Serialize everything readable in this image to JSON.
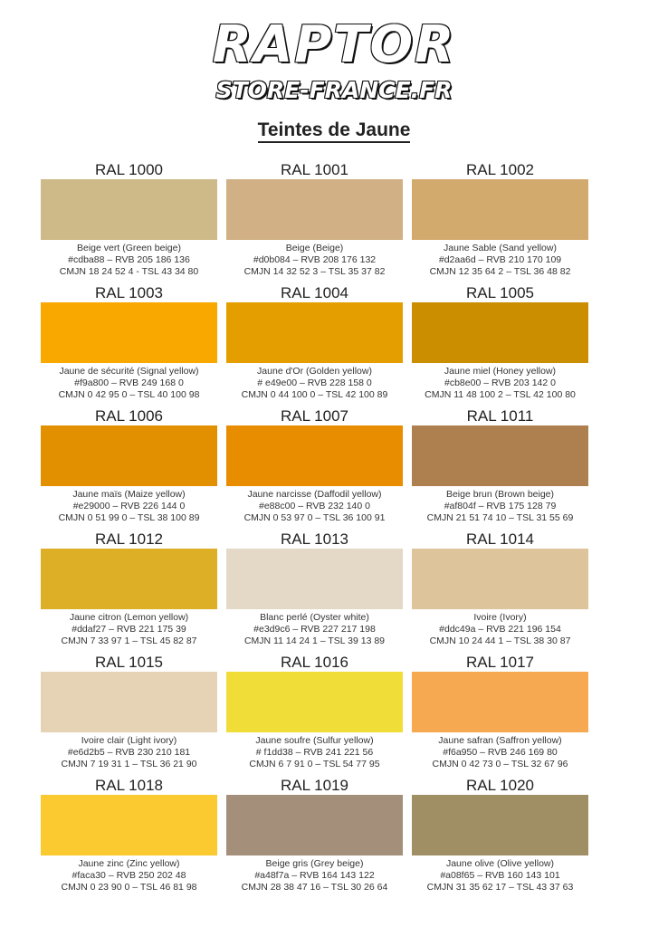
{
  "logo": {
    "main": "RAPTOR",
    "sub": "STORE-FRANCE.FR"
  },
  "title": "Teintes de Jaune",
  "colors": [
    {
      "code": "RAL 1000",
      "name": "Beige vert (Green beige)",
      "hex_line": "#cdba88 – RVB 205 186 136",
      "cmjn_line": "CMJN 18 24 52 4 - TSL 43 34 80",
      "hex": "#cdba88"
    },
    {
      "code": "RAL 1001",
      "name": "Beige (Beige)",
      "hex_line": "#d0b084 – RVB 208 176 132",
      "cmjn_line": "CMJN 14 32 52 3 – TSL 35 37 82",
      "hex": "#d0b084"
    },
    {
      "code": "RAL 1002",
      "name": "Jaune Sable (Sand yellow)",
      "hex_line": "#d2aa6d – RVB 210 170 109",
      "cmjn_line": "CMJN 12 35 64 2 – TSL 36 48 82",
      "hex": "#d2aa6d"
    },
    {
      "code": "RAL 1003",
      "name": "Jaune de sécurité (Signal yellow)",
      "hex_line": "#f9a800 – RVB 249 168 0",
      "cmjn_line": "CMJN 0 42 95 0 – TSL 40 100 98",
      "hex": "#f9a800"
    },
    {
      "code": "RAL 1004",
      "name": "Jaune d'Or (Golden yellow)",
      "hex_line": "# e49e00 – RVB 228 158 0",
      "cmjn_line": "CMJN 0 44 100 0 – TSL 42 100 89",
      "hex": "#e49e00"
    },
    {
      "code": "RAL 1005",
      "name": "Jaune miel (Honey yellow)",
      "hex_line": "#cb8e00 – RVB 203 142 0",
      "cmjn_line": "CMJN 11 48 100 2 – TSL 42 100 80",
      "hex": "#cb8e00"
    },
    {
      "code": "RAL 1006",
      "name": "Jaune maïs (Maize yellow)",
      "hex_line": "#e29000 – RVB 226 144 0",
      "cmjn_line": "CMJN 0 51 99 0 – TSL 38 100 89",
      "hex": "#e29000"
    },
    {
      "code": "RAL 1007",
      "name": "Jaune narcisse (Daffodil yellow)",
      "hex_line": "#e88c00 – RVB 232 140 0",
      "cmjn_line": "CMJN 0 53 97 0 – TSL 36 100 91",
      "hex": "#e88c00"
    },
    {
      "code": "RAL 1011",
      "name": "Beige brun (Brown beige)",
      "hex_line": "#af804f – RVB 175 128 79",
      "cmjn_line": "CMJN 21 51 74 10 – TSL 31 55 69",
      "hex": "#af804f"
    },
    {
      "code": "RAL 1012",
      "name": "Jaune citron (Lemon yellow)",
      "hex_line": "#ddaf27 – RVB 221 175 39",
      "cmjn_line": "CMJN 7 33 97 1 – TSL 45 82 87",
      "hex": "#ddaf27"
    },
    {
      "code": "RAL 1013",
      "name": "Blanc perlé (Oyster white)",
      "hex_line": "#e3d9c6 – RVB 227 217 198",
      "cmjn_line": "CMJN 11 14 24 1 – TSL 39 13 89",
      "hex": "#e3d9c6"
    },
    {
      "code": "RAL 1014",
      "name": "Ivoire (Ivory)",
      "hex_line": "#ddc49a – RVB 221 196 154",
      "cmjn_line": "CMJN 10 24 44 1 – TSL 38 30 87",
      "hex": "#ddc49a"
    },
    {
      "code": "RAL 1015",
      "name": "Ivoire clair (Light ivory)",
      "hex_line": "#e6d2b5 – RVB 230 210 181",
      "cmjn_line": "CMJN 7 19 31 1 – TSL 36 21 90",
      "hex": "#e6d2b5"
    },
    {
      "code": "RAL 1016",
      "name": "Jaune soufre (Sulfur yellow)",
      "hex_line": "# f1dd38 – RVB 241 221 56",
      "cmjn_line": "CMJN 6 7 91 0 – TSL 54 77 95",
      "hex": "#f1dd38"
    },
    {
      "code": "RAL 1017",
      "name": "Jaune safran (Saffron yellow)",
      "hex_line": "#f6a950 – RVB 246 169 80",
      "cmjn_line": "CMJN 0 42 73 0 – TSL 32 67 96",
      "hex": "#f6a950"
    },
    {
      "code": "RAL 1018",
      "name": "Jaune zinc (Zinc yellow)",
      "hex_line": "#faca30 – RVB 250 202 48",
      "cmjn_line": "CMJN 0 23 90 0 – TSL 46 81 98",
      "hex": "#faca30"
    },
    {
      "code": "RAL 1019",
      "name": "Beige gris (Grey beige)",
      "hex_line": "#a48f7a – RVB 164 143 122",
      "cmjn_line": "CMJN 28 38 47 16 – TSL 30 26 64",
      "hex": "#a48f7a"
    },
    {
      "code": "RAL 1020",
      "name": "Jaune olive (Olive yellow)",
      "hex_line": "#a08f65 – RVB 160 143 101",
      "cmjn_line": "CMJN 31 35 62 17 – TSL 43 37 63",
      "hex": "#a08f65"
    }
  ]
}
